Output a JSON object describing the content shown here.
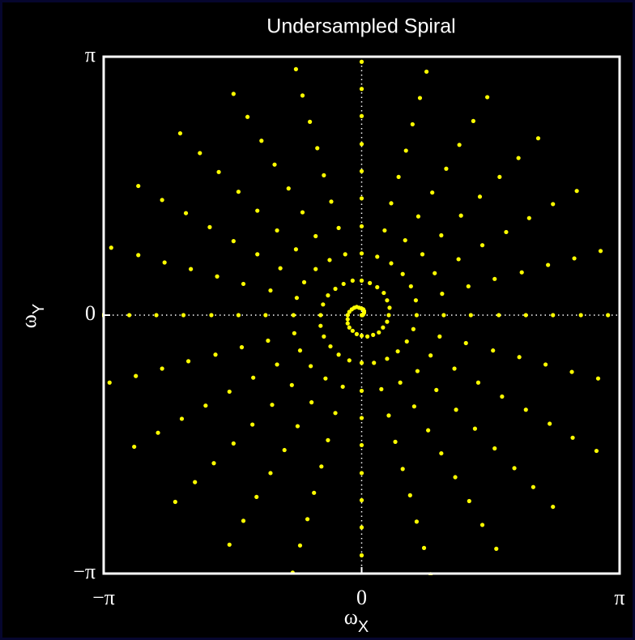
{
  "chart_data": {
    "type": "scatter",
    "title": "Undersampled Spiral",
    "xlabel": [
      "ω",
      "X"
    ],
    "ylabel": [
      "ω",
      "Y"
    ],
    "color": "#ffff00",
    "grid": true,
    "xlim": [
      -3.1416,
      3.1416
    ],
    "ylim": [
      -3.1416,
      3.1416
    ],
    "xticks": [
      {
        "value": -3.1416,
        "label": "−π"
      },
      0,
      {
        "value": 3.1416,
        "label": "π"
      }
    ],
    "yticks": [
      {
        "value": -3.1416,
        "label": "−π"
      },
      0,
      {
        "value": 3.1416,
        "label": "π"
      }
    ],
    "x": [
      0,
      0.33,
      0.67,
      1,
      1.33,
      1.67,
      2,
      2.33,
      2.67,
      3,
      0.01,
      0.34,
      0.66,
      0.98,
      1.3,
      1.62,
      1.95,
      2.27,
      2.59,
      2.91,
      0.02,
      0.31,
      0.6,
      0.89,
      1.18,
      1.47,
      1.76,
      2.04,
      2.33,
      2.62,
      0.03,
      0.27,
      0.5,
      0.74,
      0.97,
      1.21,
      1.44,
      1.68,
      1.91,
      2.15,
      0.03,
      0.19,
      0.36,
      0.53,
      0.69,
      0.86,
      1.03,
      1.19,
      1.36,
      1.53,
      0.02,
      0.1,
      0.19,
      0.28,
      0.36,
      0.45,
      0.54,
      0.62,
      0.71,
      0.79,
      0,
      0,
      0,
      0,
      0,
      0,
      0,
      0,
      0,
      0,
      -0.03,
      -0.11,
      -0.2,
      -0.28,
      -0.37,
      -0.46,
      -0.54,
      -0.63,
      -0.72,
      -0.8,
      -0.06,
      -0.22,
      -0.39,
      -0.56,
      -0.72,
      -0.89,
      -1.06,
      -1.22,
      -1.39,
      -1.56,
      -0.09,
      -0.32,
      -0.56,
      -0.8,
      -1.03,
      -1.27,
      -1.5,
      -1.74,
      -1.97,
      -2.21,
      -0.12,
      -0.41,
      -0.7,
      -0.99,
      -1.27,
      -1.56,
      -1.85,
      -2.14,
      -2.43,
      -2.72,
      -0.15,
      -0.47,
      -0.79,
      -1.11,
      -1.44,
      -1.76,
      -2.08,
      -2.4,
      -2.72,
      -3.05,
      -0.17,
      -0.5,
      -0.83,
      -1.17,
      -1.5,
      -1.83,
      -2.17,
      -2.5,
      -2.83,
      -3.17,
      -0.17,
      -0.5,
      -0.82,
      -1.14,
      -1.46,
      -1.78,
      -2.11,
      -2.43,
      -2.75,
      -3.07,
      -0.17,
      -0.46,
      -0.75,
      -1.03,
      -1.32,
      -1.61,
      -1.9,
      -2.19,
      -2.48,
      -2.77,
      -0.15,
      -0.38,
      -0.62,
      -0.85,
      -1.09,
      -1.33,
      -1.56,
      -1.8,
      -2.03,
      -2.27,
      -0.11,
      -0.28,
      -0.44,
      -0.61,
      -0.78,
      -0.94,
      -1.11,
      -1.28,
      -1.44,
      -1.61,
      -0.06,
      -0.15,
      -0.23,
      -0.32,
      -0.41,
      -0.49,
      -0.58,
      -0.66,
      -0.75,
      -0.84,
      0,
      0,
      0,
      0,
      0,
      0,
      0,
      0,
      0,
      0,
      0.07,
      0.15,
      0.24,
      0.33,
      0.41,
      0.5,
      0.59,
      0.67,
      0.76,
      0.84,
      0.14,
      0.31,
      0.47,
      0.64,
      0.81,
      0.97,
      1.14,
      1.31,
      1.47,
      1.64,
      0.21,
      0.44,
      0.68,
      0.91,
      1.15,
      1.38,
      1.62,
      1.86,
      2.09,
      2.33,
      0.26,
      0.55,
      0.84,
      1.13,
      1.42,
      1.71,
      2.0,
      2.29,
      2.57,
      2.86,
      0.31,
      0.63,
      0.95,
      1.27,
      1.6,
      1.92,
      2.24,
      2.56,
      2.88,
      3.21
    ],
    "values": [
      0,
      0,
      0,
      0,
      0,
      0,
      0,
      0,
      0,
      0,
      0,
      0.09,
      0.18,
      0.26,
      0.35,
      0.44,
      0.52,
      0.61,
      0.69,
      0.78,
      0.01,
      0.18,
      0.35,
      0.51,
      0.68,
      0.85,
      1.01,
      1.18,
      1.35,
      1.51,
      0.03,
      0.27,
      0.5,
      0.74,
      0.97,
      1.21,
      1.44,
      1.68,
      1.91,
      2.15,
      0.05,
      0.34,
      0.63,
      0.91,
      1.2,
      1.49,
      1.78,
      2.07,
      2.36,
      2.65,
      0.07,
      0.39,
      0.71,
      1.03,
      1.36,
      1.68,
      2.0,
      2.32,
      2.64,
      2.96,
      0.08,
      0.42,
      0.75,
      1.08,
      1.42,
      1.75,
      2.08,
      2.42,
      2.75,
      3.08,
      0.09,
      0.42,
      0.74,
      1.06,
      1.38,
      1.7,
      2.03,
      2.35,
      2.67,
      2.99,
      0.1,
      0.38,
      0.67,
      0.96,
      1.25,
      1.54,
      1.83,
      2.12,
      2.41,
      2.69,
      0.09,
      0.32,
      0.56,
      0.8,
      1.03,
      1.27,
      1.5,
      1.74,
      1.97,
      2.21,
      0.07,
      0.24,
      0.4,
      0.57,
      0.74,
      0.9,
      1.07,
      1.24,
      1.4,
      1.57,
      0.04,
      0.13,
      0.21,
      0.3,
      0.38,
      0.47,
      0.56,
      0.64,
      0.73,
      0.82,
      0,
      0,
      0,
      0,
      0,
      0,
      0,
      0,
      0,
      0,
      -0.05,
      -0.13,
      -0.22,
      -0.31,
      -0.39,
      -0.48,
      -0.56,
      -0.65,
      -0.74,
      -0.82,
      -0.1,
      -0.26,
      -0.43,
      -0.6,
      -0.76,
      -0.93,
      -1.1,
      -1.26,
      -1.43,
      -1.6,
      -0.15,
      -0.38,
      -0.62,
      -0.85,
      -1.09,
      -1.33,
      -1.56,
      -1.8,
      -2.03,
      -2.27,
      -0.19,
      -0.48,
      -0.77,
      -1.06,
      -1.35,
      -1.64,
      -1.92,
      -2.21,
      -2.5,
      -2.79,
      -0.23,
      -0.55,
      -0.87,
      -1.19,
      -1.52,
      -1.84,
      -2.16,
      -2.48,
      -2.8,
      -3.13,
      -0.25,
      -0.58,
      -0.92,
      -1.25,
      -1.58,
      -1.92,
      -2.25,
      -2.58,
      -2.92,
      -3.25,
      -0.26,
      -0.58,
      -0.9,
      -1.22,
      -1.54,
      -1.87,
      -2.19,
      -2.51,
      -2.83,
      -3.15,
      -0.24,
      -0.53,
      -0.82,
      -1.11,
      -1.4,
      -1.68,
      -1.97,
      -2.26,
      -2.55,
      -2.84,
      -0.21,
      -0.44,
      -0.68,
      -0.91,
      -1.15,
      -1.38,
      -1.62,
      -1.86,
      -2.09,
      -2.33,
      -0.15,
      -0.32,
      -0.49,
      -0.65,
      -0.82,
      -0.99,
      -1.15,
      -1.32,
      -1.49,
      -1.65,
      -0.08,
      -0.17,
      -0.26,
      -0.34,
      -0.43,
      -0.51,
      -0.6,
      -0.69,
      -0.77,
      -0.86
    ]
  }
}
